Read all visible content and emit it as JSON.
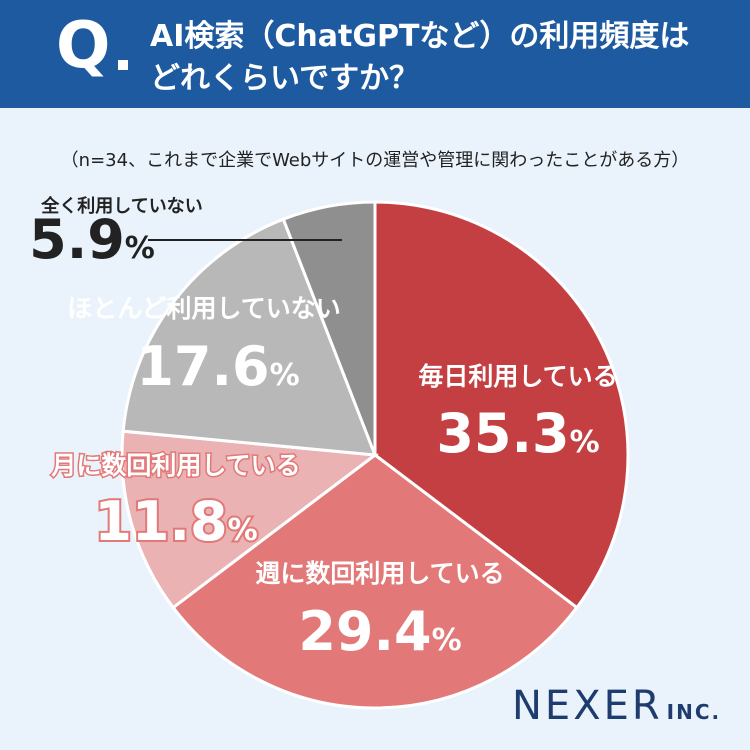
{
  "header": {
    "q_mark": "Q",
    "question_line1": "AI検索（ChatGPTなど）の利用頻度は",
    "question_line2": "どれくらいですか？"
  },
  "note": "（n=34、これまで企業でWebサイトの運営や管理に関わったことがある方）",
  "brand": {
    "name": "NEXER",
    "suffix": "INC."
  },
  "colors": {
    "header_bg": "#1e5aa0",
    "background": "#eaf3fb",
    "daily": "#c43f42",
    "weekly": "#e27878",
    "monthly": "#eab2b2",
    "rarely": "#b8b8b8",
    "never": "#8f8f8f"
  },
  "chart_data": {
    "type": "pie",
    "categories": [
      "毎日利用している",
      "週に数回利用している",
      "月に数回利用している",
      "ほとんど利用していない",
      "全く利用していない"
    ],
    "values": [
      35.3,
      29.4,
      11.8,
      17.6,
      5.9
    ],
    "unit": "%",
    "value_labels": [
      "35.3",
      "29.4",
      "11.8",
      "17.6",
      "5.9"
    ],
    "start": "12 o'clock",
    "direction": "clockwise"
  }
}
